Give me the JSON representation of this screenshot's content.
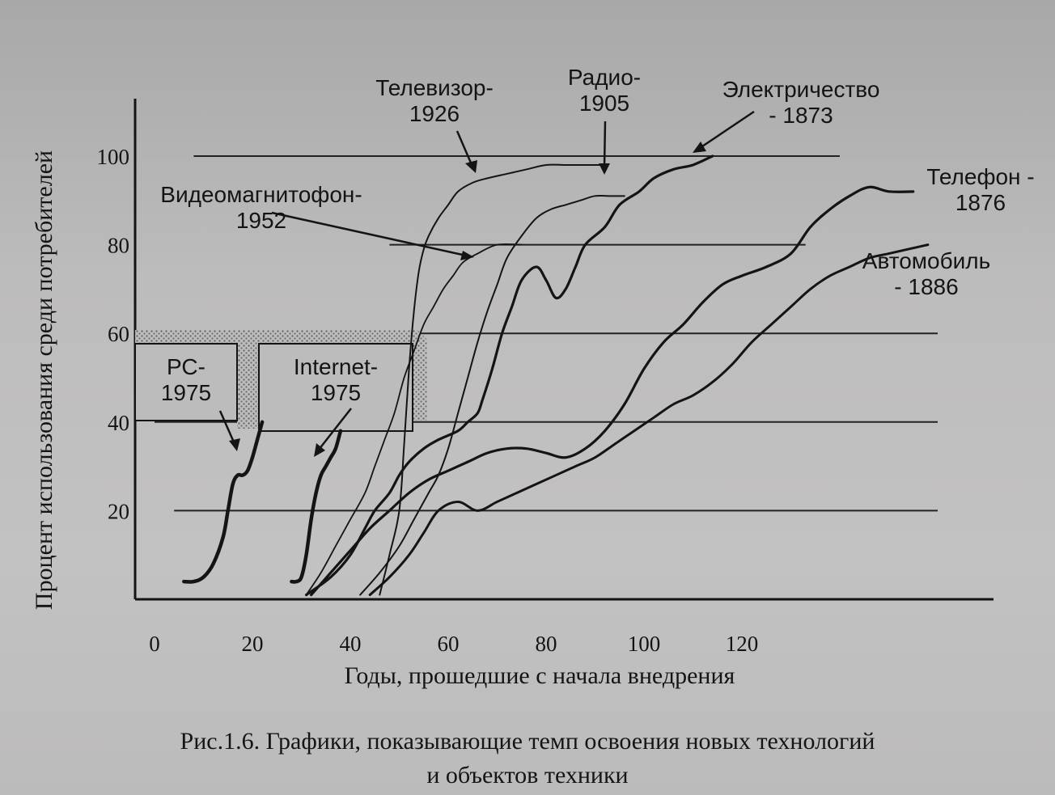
{
  "chart_data": {
    "type": "line",
    "ylabel": "Процент использования среди потребителей",
    "xlabel": "Годы, прошедшие с начала внедрения",
    "caption": [
      "Рис.1.6. Графики, показывающие темп освоения новых технологий",
      "и объектов техники"
    ],
    "xlim": [
      0,
      160
    ],
    "ylim": [
      0,
      115
    ],
    "x_ticks": [
      "0",
      "20",
      "40",
      "60",
      "80",
      "100",
      "120"
    ],
    "y_ticks": [
      "20",
      "40",
      "60",
      "80",
      "100"
    ],
    "grid": true,
    "colors": {
      "ink": "#141414",
      "paper": "#bdbcbc",
      "hatch": "#7d7d7d"
    },
    "series": [
      {
        "name": "Электричество\n- 1873",
        "x": [
          31,
          36,
          40,
          43,
          45,
          48,
          50,
          52,
          55,
          58,
          62,
          64,
          66,
          67,
          69,
          71,
          73,
          75,
          78,
          80,
          82,
          84,
          86,
          88,
          92,
          95,
          99,
          102,
          106,
          110,
          114
        ],
        "y": [
          1,
          5,
          10,
          16,
          20,
          24,
          28,
          31,
          34,
          36,
          38,
          40,
          42,
          45,
          52,
          60,
          66,
          72,
          75,
          72,
          68,
          70,
          75,
          80,
          84,
          89,
          92,
          95,
          97,
          98,
          100
        ]
      },
      {
        "name": "Телефон -\n1876",
        "x": [
          32,
          36,
          40,
          44,
          48,
          52,
          56,
          60,
          64,
          68,
          72,
          76,
          80,
          84,
          88,
          92,
          96,
          100,
          104,
          108,
          112,
          116,
          120,
          125,
          130,
          134,
          138,
          142,
          146,
          150,
          155
        ],
        "y": [
          1,
          6,
          11,
          16,
          20,
          24,
          27,
          29,
          31,
          33,
          34,
          34,
          33,
          32,
          34,
          38,
          44,
          52,
          58,
          62,
          67,
          71,
          73,
          75,
          78,
          84,
          88,
          91,
          93,
          92,
          92
        ]
      },
      {
        "name": "Автомобиль\n- 1886",
        "x": [
          44,
          48,
          52,
          55,
          58,
          62,
          66,
          70,
          74,
          78,
          82,
          86,
          90,
          94,
          98,
          102,
          106,
          110,
          114,
          118,
          122,
          126,
          130,
          134,
          138,
          142,
          146,
          150,
          154,
          158
        ],
        "y": [
          1,
          5,
          10,
          15,
          20,
          22,
          20,
          22,
          24,
          26,
          28,
          30,
          32,
          35,
          38,
          41,
          44,
          46,
          49,
          53,
          58,
          62,
          66,
          70,
          73,
          75,
          77,
          78,
          79,
          80
        ]
      },
      {
        "name": "Радио-\n1905",
        "x": [
          42,
          46,
          50,
          53,
          56,
          58,
          60,
          62,
          64,
          66,
          68,
          70,
          72,
          75,
          78,
          81,
          84,
          87,
          90,
          93,
          96
        ],
        "y": [
          1,
          6,
          12,
          18,
          24,
          28,
          34,
          42,
          50,
          58,
          65,
          71,
          77,
          82,
          86,
          88,
          89,
          90,
          91,
          91,
          91
        ]
      },
      {
        "name": "Телевизор-\n1926",
        "x": [
          46,
          48,
          50,
          51,
          52,
          53,
          54,
          55,
          56,
          58,
          60,
          62,
          65,
          68,
          72,
          76,
          80,
          84,
          88,
          92
        ],
        "y": [
          1,
          10,
          20,
          35,
          52,
          65,
          74,
          79,
          82,
          86,
          89,
          92,
          94,
          95,
          96,
          97,
          98,
          98,
          98,
          98
        ]
      },
      {
        "name": "Видеомагнитофон-\n1952",
        "x": [
          31,
          34,
          37,
          40,
          43,
          45,
          47,
          49,
          51,
          53,
          55,
          57,
          59,
          61,
          63,
          66,
          70,
          75
        ],
        "y": [
          1,
          6,
          12,
          18,
          24,
          30,
          36,
          42,
          50,
          56,
          62,
          66,
          70,
          73,
          76,
          78,
          80,
          80
        ]
      },
      {
        "name": "РС-\n1975",
        "x": [
          6,
          8,
          10,
          12,
          14,
          15,
          16,
          17,
          18,
          19,
          20,
          21,
          22
        ],
        "y": [
          4,
          4,
          5,
          8,
          14,
          20,
          26,
          28,
          28,
          29,
          32,
          36,
          40
        ]
      },
      {
        "name": "Internet-\n1975",
        "x": [
          28,
          29,
          30,
          31,
          32,
          33,
          34,
          35,
          36,
          37,
          38
        ],
        "y": [
          4,
          4,
          5,
          10,
          18,
          24,
          28,
          30,
          32,
          34,
          38
        ]
      }
    ],
    "guide_lines": [
      {
        "x_from": 8,
        "x_to": 140,
        "y": 100
      },
      {
        "x_from": 48,
        "x_to": 133,
        "y": 80
      },
      {
        "x_from": 0,
        "x_to": 160,
        "y": 60
      },
      {
        "x_from": 0,
        "x_to": 160,
        "y": 40
      },
      {
        "x_from": 4,
        "x_to": 160,
        "y": 20
      }
    ]
  }
}
